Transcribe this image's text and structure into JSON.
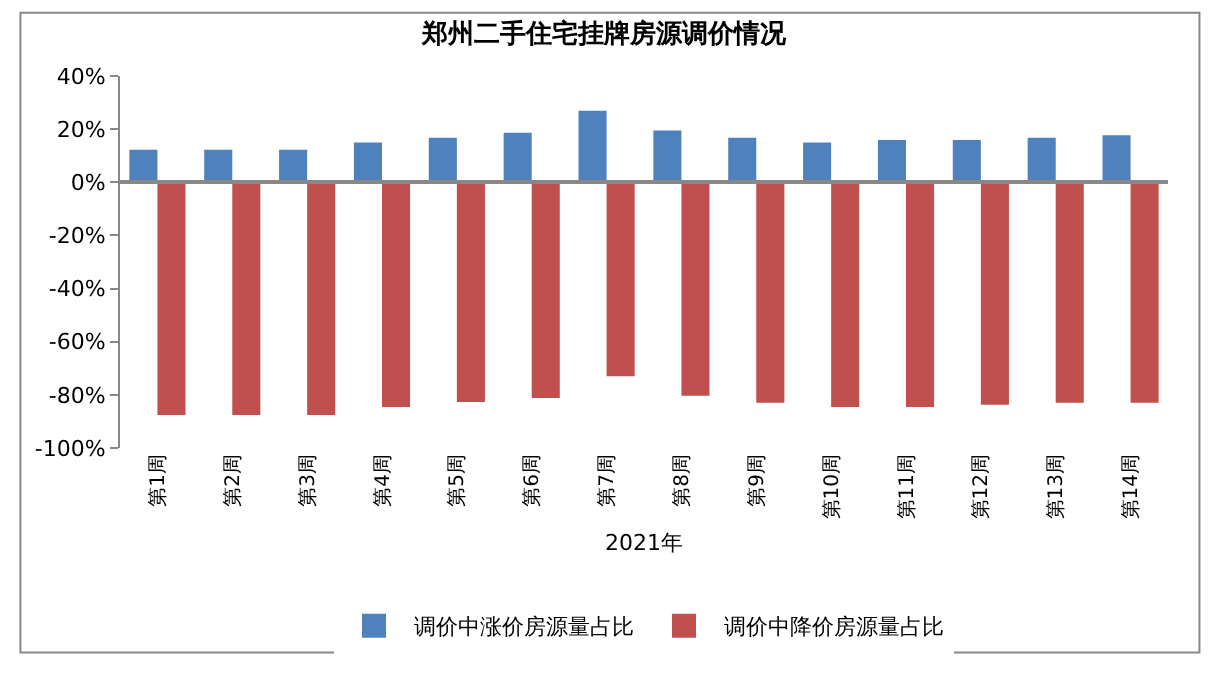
{
  "chart_data": {
    "type": "bar",
    "title": "郑州二手住宅挂牌房源调价情况",
    "xlabel": "2021年",
    "categories": [
      "第1周",
      "第2周",
      "第3周",
      "第4周",
      "第5周",
      "第6周",
      "第7周",
      "第8周",
      "第9周",
      "第10周",
      "第11周",
      "第12周",
      "第13周",
      "第14周"
    ],
    "series": [
      {
        "name": "调价中涨价房源量占比",
        "color": "#4f81bd",
        "values": [
          12.2,
          12.2,
          12.2,
          15,
          16.8,
          18.6,
          26.9,
          19.5,
          16.8,
          15,
          15.9,
          15.9,
          16.8,
          17.7
        ]
      },
      {
        "name": "调价中降价房源量占比",
        "color": "#c0504d",
        "values": [
          -87.6,
          -87.6,
          -87.6,
          -84.6,
          -82.7,
          -81.2,
          -73,
          -80.3,
          -83,
          -84.6,
          -84.6,
          -83.7,
          -83,
          -83
        ]
      }
    ],
    "ylim": [
      -100,
      40
    ],
    "yticks": [
      {
        "value": -100,
        "label": "-100%"
      },
      {
        "value": -80,
        "label": "-80%"
      },
      {
        "value": -60,
        "label": "-60%"
      },
      {
        "value": -40,
        "label": "-40%"
      },
      {
        "value": -20,
        "label": "-20%"
      },
      {
        "value": 0,
        "label": "0%"
      },
      {
        "value": 20,
        "label": "20%"
      },
      {
        "value": 40,
        "label": "40%"
      }
    ],
    "legend": "bottom"
  }
}
